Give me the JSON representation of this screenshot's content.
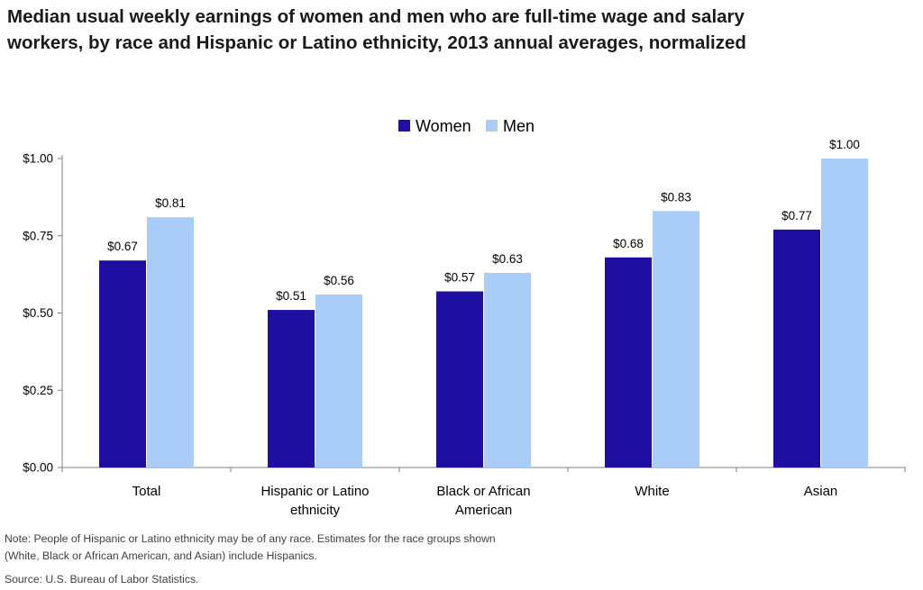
{
  "title_lines": [
    "Median usual weekly earnings of women and men who are full-time wage and salary",
    "workers, by race and Hispanic or Latino ethnicity, 2013 annual averages, normalized"
  ],
  "note_lines": [
    "Note: People of Hispanic or Latino ethnicity may be of any race. Estimates for the race groups shown",
    "(White, Black or African American, and Asian) include Hispanics."
  ],
  "source": "Source: U.S. Bureau of Labor Statistics.",
  "chart_data": {
    "type": "bar",
    "title": "Median usual weekly earnings of women and men who are full-time wage and salary workers, by race and Hispanic or Latino ethnicity, 2013 annual averages, normalized",
    "xlabel": "",
    "ylabel": "",
    "categories": [
      [
        "Total"
      ],
      [
        "Hispanic or Latino",
        "ethnicity"
      ],
      [
        "Black or African",
        "American"
      ],
      [
        "White"
      ],
      [
        "Asian"
      ]
    ],
    "series": [
      {
        "name": "Women",
        "color": "#1f0fa0",
        "values": [
          0.67,
          0.51,
          0.57,
          0.68,
          0.77
        ],
        "labels": [
          "$0.67",
          "$0.51",
          "$0.57",
          "$0.68",
          "$0.77"
        ]
      },
      {
        "name": "Men",
        "color": "#a9cdf6",
        "values": [
          0.81,
          0.56,
          0.63,
          0.83,
          1.0
        ],
        "labels": [
          "$0.81",
          "$0.56",
          "$0.63",
          "$0.83",
          "$1.00"
        ]
      }
    ],
    "ylim": [
      0,
      1.0
    ],
    "yticks": [
      0,
      0.25,
      0.5,
      0.75,
      1.0
    ],
    "ytick_labels": [
      "$0.00",
      "$0.25",
      "$0.50",
      "$0.75",
      "$1.00"
    ],
    "legend_position": "top-center",
    "grid": false
  }
}
